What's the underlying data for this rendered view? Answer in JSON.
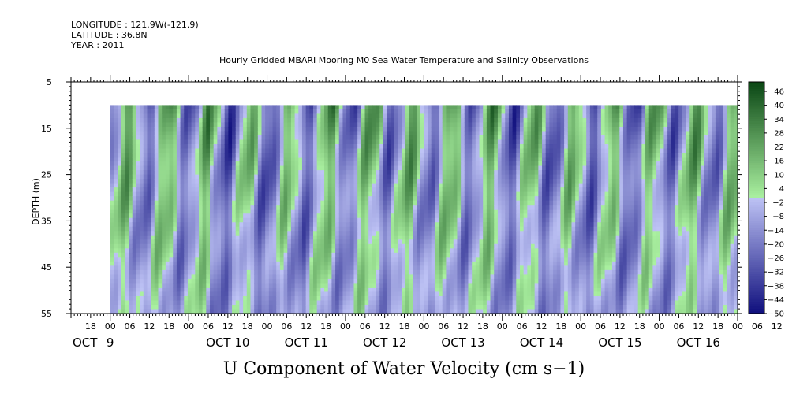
{
  "header": {
    "longitude": "LONGITUDE : 121.9W(-121.9)",
    "latitude": "LATITUDE : 36.8N",
    "year": "YEAR : 2011",
    "title": "Hourly Gridded MBARI Mooring M0 Sea Water Temperature and Salinity Observations"
  },
  "chart_data": {
    "type": "heatmap",
    "title": "Hourly Gridded MBARI Mooring M0 Sea Water Temperature and Salinity Observations",
    "xlabel": "U Component of Water Velocity (cm s−1)",
    "ylabel": "DEPTH (m)",
    "ylim": [
      5,
      55
    ],
    "y_ticks": [
      "5",
      "15",
      "25",
      "35",
      "45",
      "55"
    ],
    "y_ticks_value": [
      5,
      15,
      25,
      35,
      45,
      55
    ],
    "x_hours_start": "18",
    "x_hour_labels": [
      "18",
      "00",
      "06",
      "12",
      "18",
      "00",
      "06",
      "12",
      "18",
      "00",
      "06",
      "12",
      "18",
      "00",
      "06",
      "12",
      "18",
      "00",
      "06",
      "12",
      "18",
      "00",
      "06",
      "12",
      "18",
      "00",
      "06",
      "12",
      "18",
      "00",
      "06",
      "12",
      "18",
      "00",
      "06",
      "12"
    ],
    "x_day_labels": [
      "OCT",
      "9",
      "OCT 10",
      "OCT 11",
      "OCT 12",
      "OCT 13",
      "OCT 14",
      "OCT 15",
      "OCT 16"
    ],
    "x_range_hours": [
      -12,
      192
    ],
    "data_start_hour": 0,
    "data_depth_top": 10,
    "colorbar": {
      "levels": [
        "46",
        "40",
        "34",
        "28",
        "22",
        "16",
        "10",
        "4",
        "−2",
        "−8",
        "−14",
        "−20",
        "−26",
        "−32",
        "−38",
        "−44",
        "−50"
      ],
      "min": -50,
      "max": 50
    },
    "note": "Positive (green) bands alternate with negative (blue) regions roughly every 12 hours, strongest in upper 10-35 m."
  }
}
